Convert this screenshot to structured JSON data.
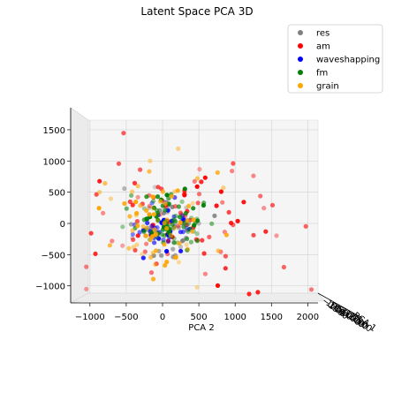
{
  "chart_data": {
    "type": "scatter",
    "title": "Latent Space PCA 3D",
    "xlabel": "PCA 2",
    "zlabel_partial": "PCA 1",
    "view": "3d-side",
    "xlim": [
      -1250,
      2150
    ],
    "ylim": [
      -1300,
      1850
    ],
    "x_ticks": [
      -1000,
      -500,
      0,
      500,
      1000,
      1500,
      2000
    ],
    "y_ticks": [
      -1000,
      -500,
      0,
      500,
      1000,
      1500
    ],
    "depth_ticks": [
      "−1500",
      "1000",
      "500",
      "0",
      "500",
      "1000",
      "1500",
      "2000",
      "2500"
    ],
    "grid": true,
    "legend_position": "top-right",
    "series": [
      {
        "name": "res",
        "color": "#808080"
      },
      {
        "name": "am",
        "color": "#ff0000"
      },
      {
        "name": "waveshapping",
        "color": "#0000ff"
      },
      {
        "name": "fm",
        "color": "#008000"
      },
      {
        "name": "grain",
        "color": "#ffa500"
      }
    ]
  }
}
